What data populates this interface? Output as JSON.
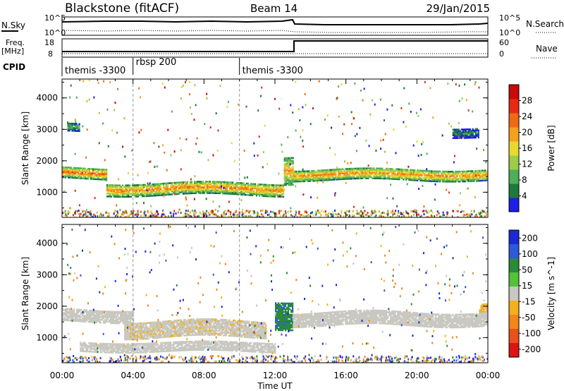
{
  "header": {
    "radar": "Blackstone (fitACF)",
    "beam": "Beam 14",
    "date": "29/Jan/2015"
  },
  "top_panels": {
    "noise_left_label": "N.Sky",
    "noise_right_label": "N.Search",
    "noise_left_ticks": [
      "10^5",
      "10^0"
    ],
    "noise_right_ticks": [
      "10^5",
      "10^0"
    ],
    "freq_label_top": "Freq.",
    "freq_label_unit": "[MHz]",
    "freq_ticks": [
      "18",
      "8"
    ],
    "nave_label": "Nave",
    "nave_ticks": [
      "60",
      "0"
    ],
    "cpid_label": "CPID"
  },
  "cpid_segments": [
    {
      "start_hour": 0.0,
      "label": "themis -3300"
    },
    {
      "start_hour": 4.0,
      "label": "rbsp 200"
    },
    {
      "start_hour": 10.0,
      "label": "themis -3300"
    }
  ],
  "x_axis": {
    "title": "Time UT",
    "tick_labels": [
      "00:00",
      "04:00",
      "08:00",
      "12:00",
      "16:00",
      "20:00",
      "00:00"
    ],
    "range_hours": [
      0,
      24
    ]
  },
  "colors": {
    "power_scale": [
      "#1e1ee6",
      "#1e7a3a",
      "#4fae5a",
      "#9ccc4a",
      "#e8d830",
      "#f4a020",
      "#ef6a16",
      "#e62a16",
      "#c80a0a"
    ],
    "velocity_scale": [
      "#1a2ad2",
      "#2c5ad8",
      "#2a8a3a",
      "#52c23a",
      "#c8c8c0",
      "#f2b020",
      "#f28618",
      "#e8501c",
      "#dc1414"
    ],
    "ground_scatter": "#c8c8c0"
  },
  "chart_data": [
    {
      "type": "heatmap",
      "title": "Power",
      "ylabel": "Slant Range [km]",
      "xlabel": "",
      "y_ticks": [
        "1000",
        "2000",
        "3000",
        "4000"
      ],
      "ylim": [
        200,
        4600
      ],
      "colorbar_label": "Power [dB]",
      "colorbar_ticks": [
        "4",
        "8",
        "12",
        "16",
        "20",
        "24",
        "28"
      ],
      "colorbar_range": [
        0,
        32
      ],
      "regions": [
        {
          "t_start": 0.0,
          "t_end": 2.5,
          "range_center": 1600,
          "range_width": 350,
          "power": 24
        },
        {
          "t_start": 2.5,
          "t_end": 12.5,
          "range_center": 1100,
          "range_width": 400,
          "power": 22
        },
        {
          "t_start": 12.5,
          "t_end": 13.0,
          "range_center": 1800,
          "range_width": 900,
          "power": 20
        },
        {
          "t_start": 13.0,
          "t_end": 24.0,
          "range_center": 1550,
          "range_width": 350,
          "power": 22
        },
        {
          "t_start": 0.3,
          "t_end": 1.0,
          "range_center": 3050,
          "range_width": 250,
          "power": 10
        },
        {
          "t_start": 22.0,
          "t_end": 23.5,
          "range_center": 2900,
          "range_width": 300,
          "power": 6
        }
      ]
    },
    {
      "type": "heatmap",
      "title": "Velocity",
      "ylabel": "Slant Range [km]",
      "xlabel": "Time UT",
      "y_ticks": [
        "1000",
        "2000",
        "3000",
        "4000"
      ],
      "ylim": [
        200,
        4600
      ],
      "colorbar_label": "Velocity [m s^-1]",
      "colorbar_ticks": [
        "200",
        "100",
        "50",
        "15",
        "-15",
        "-50",
        "-100",
        "-200"
      ],
      "colorbar_range": [
        -250,
        250
      ],
      "regions": [
        {
          "t_start": 0.0,
          "t_end": 4.0,
          "range_center": 1700,
          "range_width": 400,
          "velocity": 0
        },
        {
          "t_start": 3.5,
          "t_end": 11.5,
          "range_center": 1250,
          "range_width": 500,
          "velocity": -40
        },
        {
          "t_start": 1.0,
          "t_end": 12.0,
          "range_center": 700,
          "range_width": 300,
          "velocity": 0
        },
        {
          "t_start": 12.0,
          "t_end": 13.0,
          "range_center": 1800,
          "range_width": 900,
          "velocity": 40
        },
        {
          "t_start": 13.0,
          "t_end": 24.0,
          "range_center": 1600,
          "range_width": 450,
          "velocity": 0
        },
        {
          "t_start": 23.5,
          "t_end": 24.0,
          "range_center": 1950,
          "range_width": 250,
          "velocity": -60
        }
      ]
    }
  ]
}
